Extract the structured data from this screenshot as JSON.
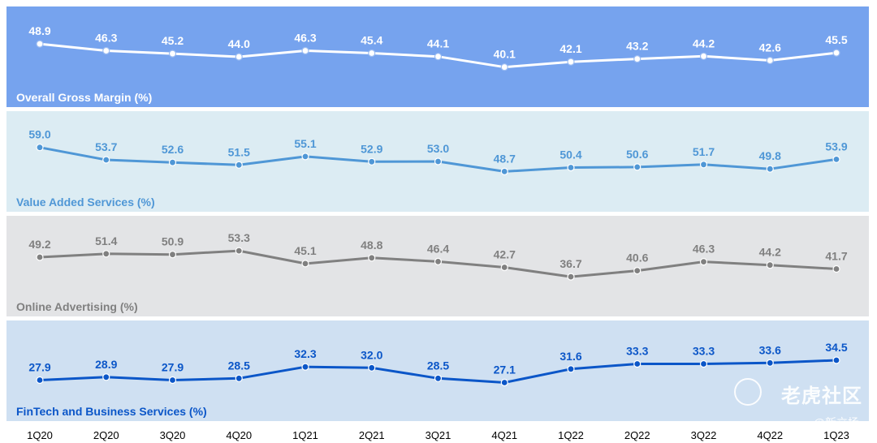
{
  "chart_data": {
    "type": "line",
    "categories": [
      "1Q20",
      "2Q20",
      "3Q20",
      "4Q20",
      "1Q21",
      "2Q21",
      "3Q21",
      "4Q21",
      "1Q22",
      "2Q22",
      "3Q22",
      "4Q22",
      "1Q23"
    ],
    "series": [
      {
        "name": "Overall Gross Margin (%)",
        "values": [
          48.9,
          46.3,
          45.2,
          44.0,
          46.3,
          45.4,
          44.1,
          40.1,
          42.1,
          43.2,
          44.2,
          42.6,
          45.5
        ],
        "color": "#ffffff",
        "labelColor": "#ffffff",
        "ylim": [
          36,
          52
        ]
      },
      {
        "name": "Value Added Services (%)",
        "values": [
          59.0,
          53.7,
          52.6,
          51.5,
          55.1,
          52.9,
          53.0,
          48.7,
          50.4,
          50.6,
          51.7,
          49.8,
          53.9
        ],
        "color": "#4f97d6",
        "labelColor": "#4f97d6",
        "ylim": [
          44,
          62
        ]
      },
      {
        "name": "Online Advertising (%)",
        "values": [
          49.2,
          51.4,
          50.9,
          53.3,
          45.1,
          48.8,
          46.4,
          42.7,
          36.7,
          40.6,
          46.3,
          44.2,
          41.7
        ],
        "color": "#808080",
        "labelColor": "#808080",
        "ylim": [
          30,
          57
        ]
      },
      {
        "name": "FinTech and Business Services (%)",
        "values": [
          27.9,
          28.9,
          27.9,
          28.5,
          32.3,
          32.0,
          28.5,
          27.1,
          31.6,
          33.3,
          33.3,
          33.6,
          34.5
        ],
        "color": "#0b56c8",
        "labelColor": "#0b56c8",
        "ylim": [
          24,
          38
        ]
      }
    ]
  },
  "watermark": {
    "brand": "老虎社区",
    "handle": "@新立场"
  }
}
